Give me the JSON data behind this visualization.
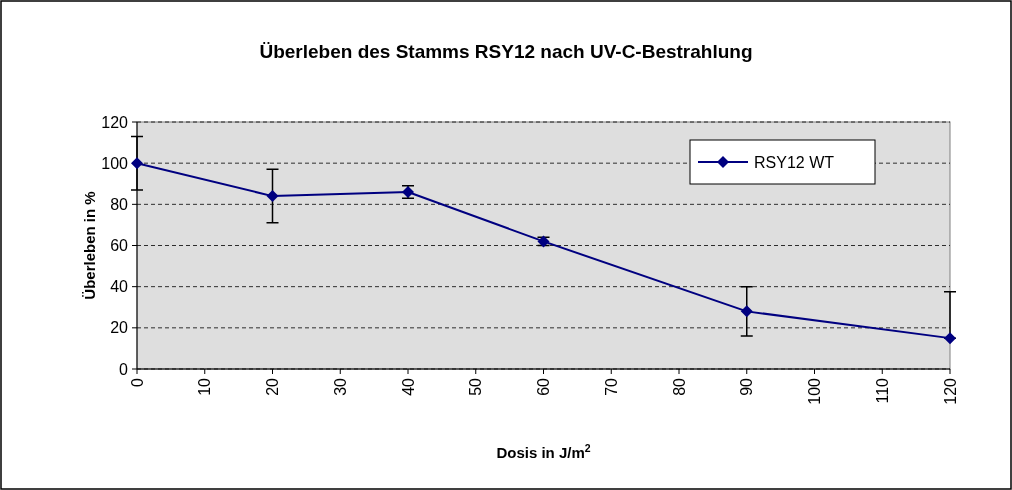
{
  "chart_data": {
    "type": "line",
    "title": "Überleben des Stamms RSY12 nach UV-C-Bestrahlung",
    "xlabel": "Dosis in J/m$^{2}$",
    "ylabel": "Überleben in %",
    "x": [
      0,
      20,
      40,
      60,
      90,
      120
    ],
    "series": [
      {
        "name": "RSY12 WT",
        "color": "#000080",
        "values": [
          100,
          84,
          86,
          62,
          28,
          15
        ],
        "errors": [
          13,
          13,
          3,
          2,
          12,
          [
            15,
            37.5
          ]
        ]
      }
    ],
    "xlim": [
      0,
      120
    ],
    "xticks": [
      0,
      10,
      20,
      30,
      40,
      50,
      60,
      70,
      80,
      90,
      100,
      110,
      120
    ],
    "ylim": [
      0,
      120
    ],
    "yticks": [
      0,
      20,
      40,
      60,
      80,
      100,
      120
    ],
    "grid": "y",
    "legend": "top right",
    "marker": "diamond",
    "line_style": "solid"
  }
}
